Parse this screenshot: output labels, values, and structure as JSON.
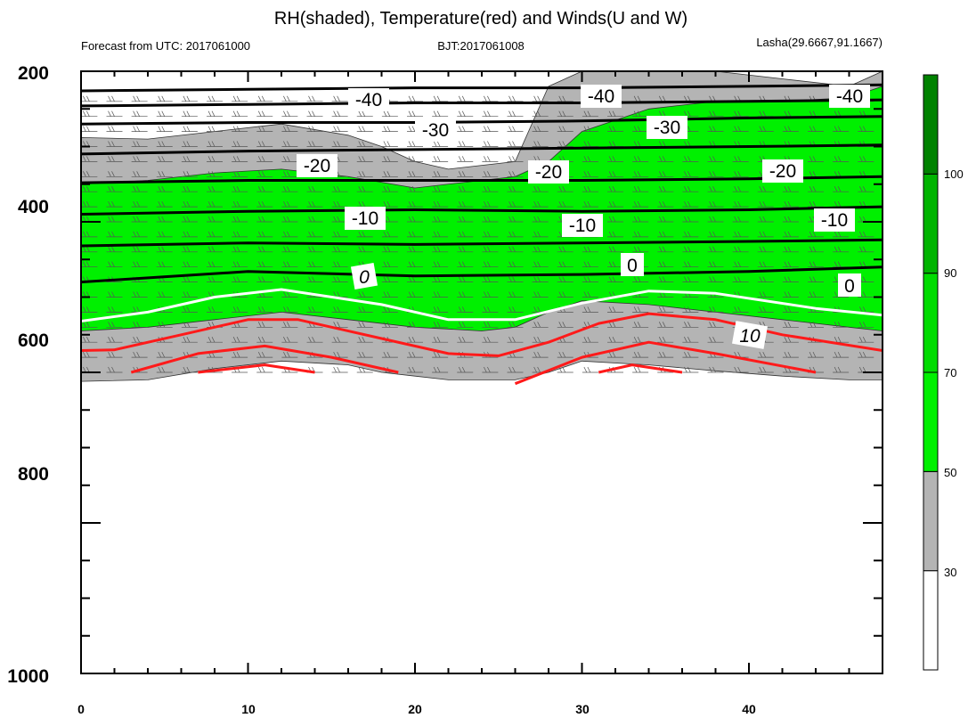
{
  "chart_data": {
    "type": "heatmap",
    "title": "RH(shaded), Temperature(red) and Winds(U and W)",
    "subtitle_left": "Forecast from UTC: 2017061000",
    "subtitle_center": "BJT:2017061008",
    "subtitle_right": "Lasha(29.6667,91.1667)",
    "x_ticks": [
      "0",
      "10",
      "20",
      "30",
      "40"
    ],
    "y_ticks": [
      "200",
      "400",
      "600",
      "800",
      "1000"
    ],
    "xlim": [
      0,
      48
    ],
    "ylim": [
      1000,
      200
    ],
    "colorbar": {
      "labels": [
        "30",
        "50",
        "70",
        "90",
        "100"
      ],
      "colors": [
        "#ffffff",
        "#b4b4b4",
        "#00f000",
        "#00dc00",
        "#00b400",
        "#008200"
      ]
    },
    "isotherm_labels": {
      "black": [
        "-40",
        "-40",
        "-40",
        "-30",
        "-30",
        "-20",
        "-20",
        "-20",
        "-10",
        "-10",
        "-10"
      ],
      "white": [
        "0",
        "0",
        "0"
      ],
      "red": [
        "10"
      ]
    },
    "rh_regions": [
      {
        "level": "gray",
        "x": [
          0,
          4,
          8,
          12,
          16,
          18,
          20,
          22,
          26,
          28,
          30,
          34,
          38,
          42,
          46,
          48
        ],
        "top": [
          288,
          290,
          280,
          270,
          285,
          300,
          320,
          330,
          320,
          220,
          200,
          200,
          200,
          210,
          220,
          200
        ],
        "bottom": [
          612,
          610,
          595,
          585,
          590,
          600,
          605,
          610,
          610,
          600,
          585,
          590,
          598,
          605,
          610,
          610
        ]
      },
      {
        "level": "green",
        "x": [
          0,
          4,
          8,
          12,
          16,
          20,
          24,
          26,
          28,
          30,
          34,
          38,
          42,
          46,
          48
        ],
        "top": [
          350,
          345,
          335,
          330,
          340,
          355,
          345,
          340,
          320,
          280,
          250,
          240,
          240,
          235,
          220
        ],
        "bottom": [
          545,
          540,
          530,
          520,
          530,
          540,
          545,
          540,
          520,
          505,
          510,
          520,
          530,
          540,
          545
        ]
      }
    ],
    "isotherms": {
      "-40": {
        "x": [
          0,
          10,
          20,
          30,
          40,
          48
        ],
        "p": [
          226,
          224,
          222,
          222,
          220,
          218
        ]
      },
      "-35": {
        "x": [
          0,
          10,
          20,
          30,
          40,
          48
        ],
        "p": [
          246,
          244,
          242,
          242,
          240,
          238
        ]
      },
      "-30": {
        "x": [
          0,
          10,
          20,
          30,
          40,
          48
        ],
        "p": [
          270,
          268,
          268,
          266,
          262,
          260
        ]
      },
      "-25": {
        "x": [
          0,
          10,
          20,
          30,
          40,
          48
        ],
        "p": [
          310,
          306,
          304,
          302,
          300,
          298
        ]
      },
      "-20": {
        "x": [
          0,
          10,
          20,
          30,
          40,
          48
        ],
        "p": [
          348,
          345,
          345,
          345,
          343,
          340
        ]
      },
      "-15": {
        "x": [
          0,
          10,
          20,
          30,
          40,
          48
        ],
        "p": [
          390,
          386,
          384,
          386,
          384,
          380
        ]
      },
      "-10": {
        "x": [
          0,
          10,
          20,
          30,
          40,
          48
        ],
        "p": [
          432,
          428,
          430,
          428,
          426,
          424
        ]
      },
      "-5": {
        "x": [
          0,
          10,
          20,
          30,
          40,
          48
        ],
        "p": [
          480,
          466,
          472,
          470,
          466,
          460
        ]
      },
      "0": {
        "x": [
          0,
          4,
          8,
          12,
          18,
          22,
          26,
          30,
          34,
          38,
          44,
          48
        ],
        "p": [
          532,
          520,
          500,
          490,
          510,
          530,
          530,
          508,
          492,
          495,
          515,
          524
        ]
      },
      "5": {
        "x": [
          0,
          2,
          6,
          10,
          13,
          18,
          22,
          25,
          28,
          31,
          34,
          38,
          42,
          48
        ],
        "p": [
          571,
          570,
          550,
          530,
          530,
          555,
          575,
          578,
          560,
          535,
          522,
          530,
          550,
          571
        ]
      },
      "10a": {
        "x": [
          3,
          7,
          11,
          15,
          19
        ],
        "p": [
          600,
          575,
          565,
          580,
          600
        ]
      },
      "10b": {
        "x": [
          26,
          30,
          34,
          38,
          44
        ],
        "p": [
          615,
          580,
          560,
          575,
          600
        ]
      },
      "15a": {
        "x": [
          7,
          11,
          14
        ],
        "p": [
          600,
          590,
          600
        ]
      },
      "15b": {
        "x": [
          31,
          33,
          36
        ],
        "p": [
          600,
          590,
          600
        ]
      }
    }
  }
}
